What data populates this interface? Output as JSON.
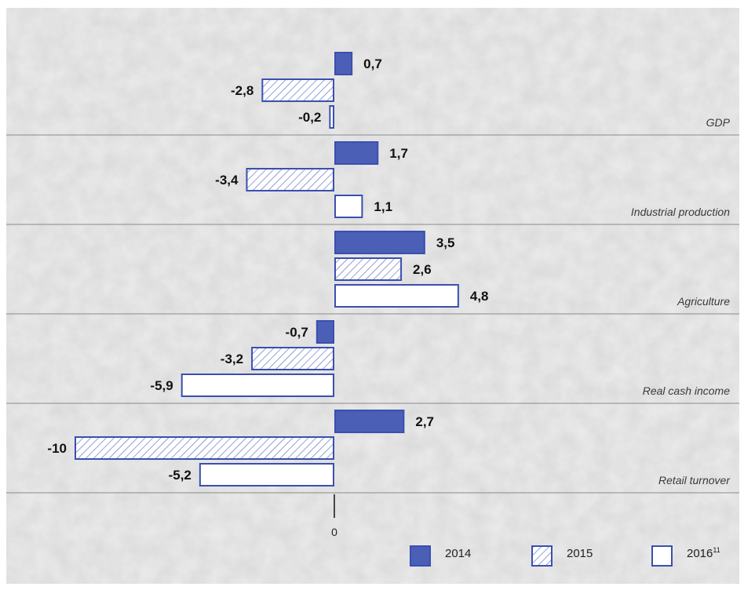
{
  "colors": {
    "background": "#ececec",
    "bar_fill": "#4b5fb7",
    "bar_stroke": "#3b4fb0",
    "separator": "#8a8a8a"
  },
  "chart_data": {
    "type": "bar",
    "orientation": "horizontal",
    "categories": [
      "GDP",
      "Industrial production",
      "Agriculture",
      "Real cash income",
      "Retail turnover"
    ],
    "series": [
      {
        "name": "2014",
        "style": "solid",
        "values": [
          0.7,
          1.7,
          3.5,
          -0.7,
          2.7
        ],
        "labels": [
          "0,7",
          "1,7",
          "3,5",
          "-0,7",
          "2,7"
        ]
      },
      {
        "name": "2015",
        "style": "hatched",
        "values": [
          -2.8,
          -3.4,
          2.6,
          -3.2,
          -10
        ],
        "labels": [
          "-2,8",
          "-3,4",
          "2,6",
          "-3,2",
          "-10"
        ]
      },
      {
        "name": "2016",
        "superscript": "11",
        "style": "outline",
        "values": [
          -0.2,
          1.1,
          4.8,
          -5.9,
          -5.2
        ],
        "labels": [
          "-0,2",
          "1,1",
          "4,8",
          "-5,9",
          "-5,2"
        ]
      }
    ],
    "xaxis_tick": "0",
    "xlim": [
      -10,
      4.8
    ],
    "legend_position": "bottom-right",
    "grid": false
  }
}
